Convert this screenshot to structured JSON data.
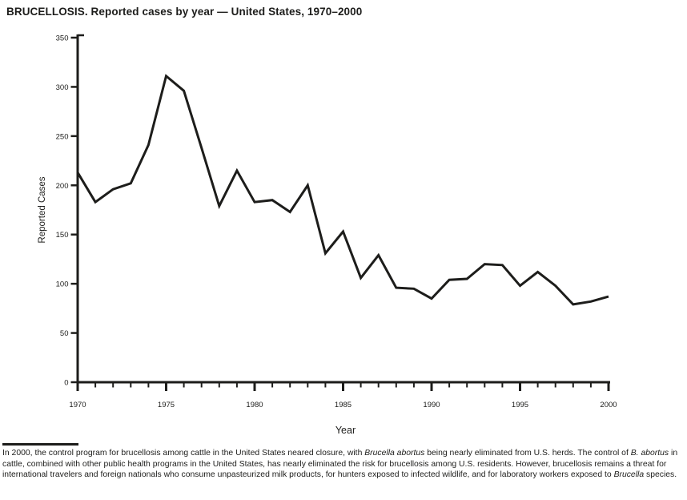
{
  "title": "BRUCELLOSIS. Reported cases by year — United States, 1970–2000",
  "colors": {
    "ink": "#1d1d1b",
    "background": "#ffffff",
    "line": "#1d1d1b"
  },
  "chart_data": {
    "type": "line",
    "title": "BRUCELLOSIS. Reported cases by year — United States, 1970–2000",
    "xlabel": "Year",
    "ylabel": "Reported Cases",
    "x": [
      1970,
      1971,
      1972,
      1973,
      1974,
      1975,
      1976,
      1977,
      1978,
      1979,
      1980,
      1981,
      1982,
      1983,
      1984,
      1985,
      1986,
      1987,
      1988,
      1989,
      1990,
      1991,
      1992,
      1993,
      1994,
      1995,
      1996,
      1997,
      1998,
      1999,
      2000
    ],
    "values": [
      213,
      183,
      196,
      202,
      241,
      311,
      296,
      238,
      179,
      215,
      183,
      185,
      173,
      200,
      131,
      153,
      106,
      129,
      96,
      95,
      85,
      104,
      105,
      120,
      119,
      98,
      112,
      98,
      79,
      82,
      87
    ],
    "ylim": [
      0,
      350
    ],
    "xlim": [
      1970,
      2000
    ],
    "yticks": [
      0,
      50,
      100,
      150,
      200,
      250,
      300,
      350
    ],
    "xticks": [
      1970,
      1975,
      1980,
      1985,
      1990,
      1995,
      2000
    ],
    "minor_xticks_every_year": true,
    "grid": false,
    "legend": null,
    "line_color": "#1d1d1b"
  },
  "footnote": {
    "segments": [
      {
        "italic": false,
        "text": "In 2000, the control program for brucellosis among cattle in the United States neared closure, with "
      },
      {
        "italic": true,
        "text": "Brucella abortus"
      },
      {
        "italic": false,
        "text": "  being nearly eliminated from U.S. herds. The control of "
      },
      {
        "italic": true,
        "text": "B. abortus"
      },
      {
        "italic": false,
        "text": " in cattle, combined with other public health programs in the United States, has nearly eliminated the risk for brucellosis among U.S. residents. However, brucellosis remains a threat for international travelers and foreign nationals who consume unpasteurized milk products, for hunters exposed to infected wildlife, and for laboratory workers exposed to "
      },
      {
        "italic": true,
        "text": "Brucella"
      },
      {
        "italic": false,
        "text": " species."
      }
    ]
  }
}
